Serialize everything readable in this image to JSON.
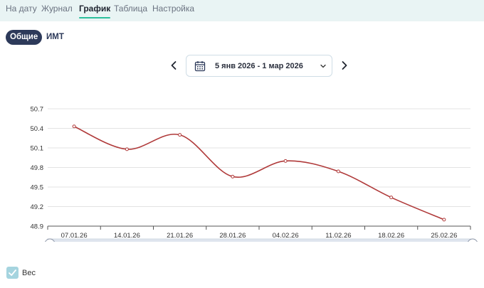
{
  "nav": {
    "tabs": [
      {
        "label": "На дату"
      },
      {
        "label": "Журнал"
      },
      {
        "label": "График"
      },
      {
        "label": "Таблица"
      },
      {
        "label": "Настройка"
      }
    ],
    "active_index": 2
  },
  "view_toggle": {
    "items": [
      {
        "label": "Общие"
      },
      {
        "label": "ИМТ"
      }
    ],
    "active_index": 0
  },
  "date_range": {
    "label": "5 янв 2026 - 1 мар 2026",
    "prev_icon": "chevron-left-icon",
    "next_icon": "chevron-right-icon",
    "calendar_icon": "calendar-icon",
    "dropdown_icon": "chevron-down-icon"
  },
  "legend": {
    "label": "Вес",
    "checked": true,
    "color": "#a5d4df"
  },
  "chart_data": {
    "type": "line",
    "categories": [
      "07.01.26",
      "14.01.26",
      "21.01.26",
      "28.01.26",
      "04.02.26",
      "11.02.26",
      "18.02.26",
      "25.02.26"
    ],
    "y_ticks": [
      "50.7",
      "50.4",
      "50.1",
      "49.8",
      "49.5",
      "49.2",
      "48.9"
    ],
    "ylim": [
      48.9,
      50.7
    ],
    "series": [
      {
        "name": "Вес",
        "color": "#b03a3a",
        "points": [
          {
            "x": 0.0,
            "y": 50.43
          },
          {
            "x": 1.0,
            "y": 50.08
          },
          {
            "x": 2.0,
            "y": 50.3
          },
          {
            "x": 3.0,
            "y": 49.66
          },
          {
            "x": 4.0,
            "y": 49.9
          },
          {
            "x": 5.0,
            "y": 49.74
          },
          {
            "x": 6.0,
            "y": 49.34
          },
          {
            "x": 7.0,
            "y": 49.0
          }
        ]
      }
    ],
    "grid": true,
    "legend_position": "bottom-left",
    "slider": true
  }
}
